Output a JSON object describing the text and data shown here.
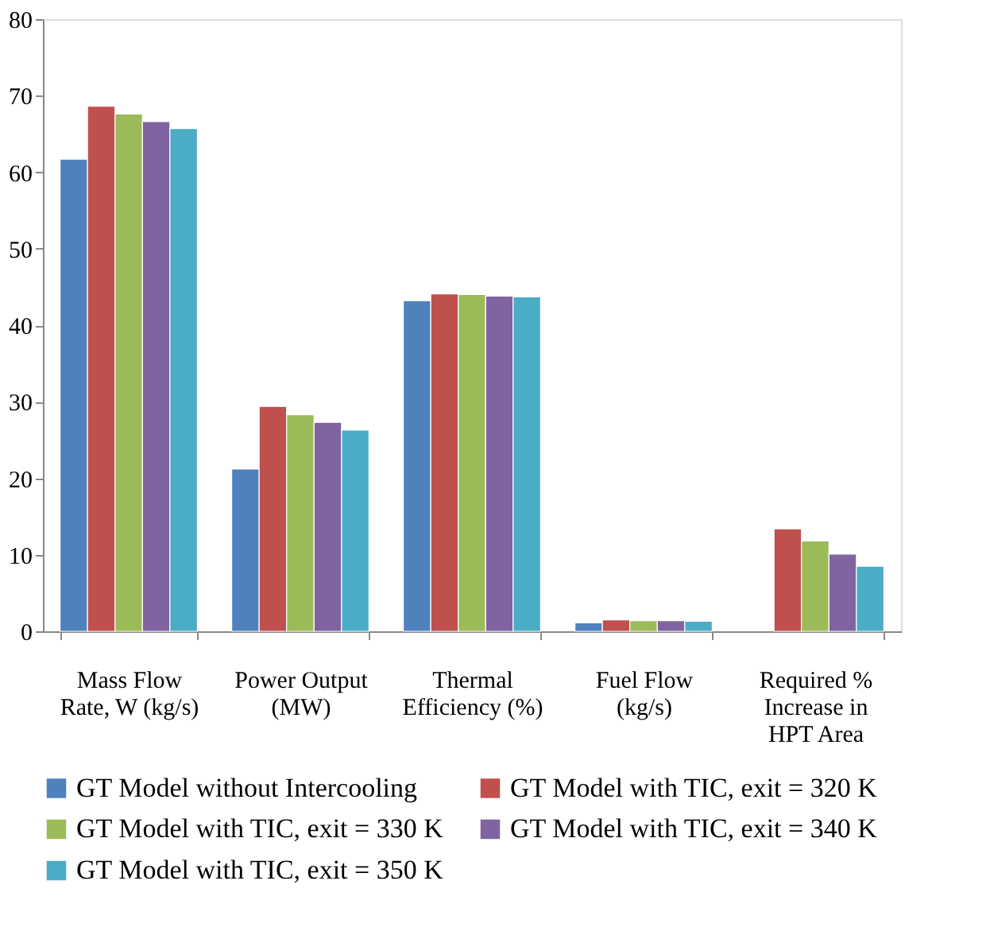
{
  "chart_data": {
    "type": "bar",
    "categories": [
      "Mass Flow Rate, W (kg/s)",
      "Power Output (MW)",
      "Thermal Efficiency (%)",
      "Fuel Flow (kg/s)",
      "Required % Increase in HPT Area"
    ],
    "series": [
      {
        "name": "GT Model without Intercooling",
        "color": "#4f81bd",
        "values": [
          61.7,
          21.2,
          43.2,
          1.1,
          null
        ]
      },
      {
        "name": "GT Model with TIC, exit = 320 K",
        "color": "#c0504d",
        "values": [
          68.6,
          29.4,
          44.1,
          1.5,
          13.4
        ]
      },
      {
        "name": "GT Model with TIC, exit = 330 K",
        "color": "#9bbb59",
        "values": [
          67.6,
          28.3,
          44.0,
          1.4,
          11.8
        ]
      },
      {
        "name": "GT Model with TIC, exit = 340 K",
        "color": "#8064a2",
        "values": [
          66.6,
          27.3,
          43.8,
          1.4,
          10.1
        ]
      },
      {
        "name": "GT Model with TIC, exit = 350 K",
        "color": "#4bacc6",
        "values": [
          65.7,
          26.3,
          43.7,
          1.3,
          8.5
        ]
      }
    ],
    "ylim": [
      0,
      80
    ],
    "yticks": [
      0,
      10,
      20,
      30,
      40,
      50,
      60,
      70,
      80
    ],
    "grid": false,
    "legend": "bottom"
  }
}
